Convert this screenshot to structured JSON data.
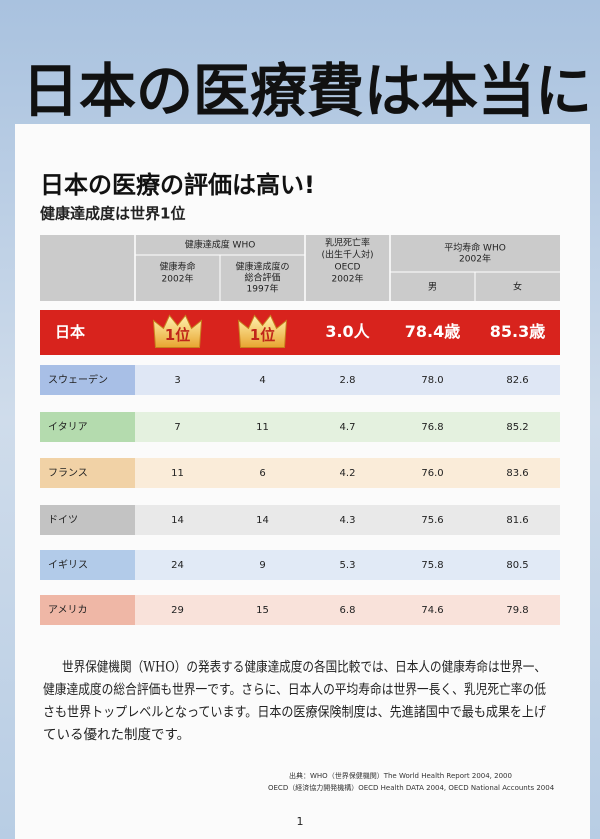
{
  "header": {
    "title": "日本の医療費は本当に"
  },
  "section": {
    "heading": "日本の医療の評価は高い!",
    "subheading": "健康達成度は世界1位"
  },
  "table": {
    "who_group": "健康達成度 WHO",
    "columns": [
      [
        "健康寿命",
        "2002年"
      ],
      [
        "健康達成度の",
        "総合評価",
        "1997年"
      ],
      [
        "乳児死亡率",
        "(出生千人対)",
        "OECD",
        "2002年"
      ]
    ],
    "life_group": [
      "平均寿命 WHO",
      "2002年"
    ],
    "sex": [
      "男",
      "女"
    ],
    "rows": [
      [
        "日本",
        "1位",
        "1位",
        "3.0人",
        "78.4歳",
        "85.3歳"
      ],
      [
        "スウェーデン",
        "3",
        "4",
        "2.8",
        "78.0",
        "82.6"
      ],
      [
        "イタリア",
        "7",
        "11",
        "4.7",
        "76.8",
        "85.2"
      ],
      [
        "フランス",
        "11",
        "6",
        "4.2",
        "76.0",
        "83.6"
      ],
      [
        "ドイツ",
        "14",
        "14",
        "4.3",
        "75.6",
        "81.6"
      ],
      [
        "イギリス",
        "24",
        "9",
        "5.3",
        "75.8",
        "80.5"
      ],
      [
        "アメリカ",
        "29",
        "15",
        "6.8",
        "74.6",
        "79.8"
      ]
    ]
  },
  "body": [
    "世界保健機関（WHO）の発表する健康達成度の各国比較では、日本人の健康寿命は世界一、",
    "健康達成度の総合評価も世界一です。さらに、日本人の平均寿命は世界一長く、乳児死亡率の低",
    "さも世界トップレベルとなっています。日本の医療保険制度は、先進諸国中で最も成果を上げ",
    "ている優れた制度です。"
  ],
  "sources": [
    "出典：WHO（世界保健機関）The World Health Report 2004, 2000",
    "OECD（経済協力開発機構）OECD Health DATA 2004, OECD National Accounts 2004"
  ],
  "page_number": "1"
}
